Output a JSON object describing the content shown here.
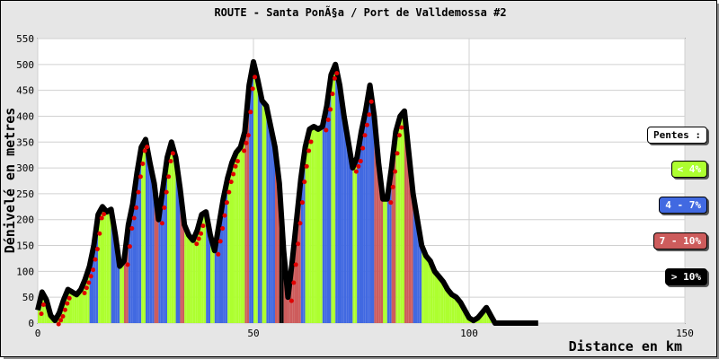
{
  "chart_data": {
    "type": "area",
    "title": "ROUTE - Santa PonÃ§a / Port de Valldemossa #2",
    "xlabel": "Distance en km",
    "ylabel": "Dénivelé en metres",
    "xlim": [
      0,
      150
    ],
    "ylim": [
      0,
      550
    ],
    "x_ticks": [
      "0",
      "50",
      "100",
      "150"
    ],
    "y_ticks": [
      "0",
      "50",
      "100",
      "150",
      "200",
      "250",
      "300",
      "350",
      "400",
      "450",
      "500",
      "550"
    ],
    "grid": true,
    "legend_position": "right",
    "legend_title": "Pentes :",
    "legend": [
      {
        "label": "< 4%",
        "color": "#adff2f",
        "text_color": "#ffffff"
      },
      {
        "label": "4 - 7%",
        "color": "#4169e1",
        "text_color": "#ffffff"
      },
      {
        "label": "7 - 10%",
        "color": "#cd5c5c",
        "text_color": "#ffffff"
      },
      {
        "label": "> 10%",
        "color": "#000000",
        "text_color": "#ffffff"
      }
    ],
    "profile": {
      "x": [
        0,
        1,
        2,
        3,
        4,
        5,
        6,
        7,
        8,
        9,
        10,
        11,
        12,
        13,
        14,
        15,
        16,
        17,
        18,
        19,
        20,
        21,
        22,
        23,
        24,
        25,
        26,
        27,
        28,
        29,
        30,
        31,
        32,
        33,
        34,
        35,
        36,
        37,
        38,
        39,
        40,
        41,
        42,
        43,
        44,
        45,
        46,
        47,
        48,
        49,
        50,
        51,
        52,
        53,
        54,
        55,
        56,
        57,
        58,
        59,
        60,
        61,
        62,
        63,
        64,
        65,
        66,
        67,
        68,
        69,
        70,
        71,
        72,
        73,
        74,
        75,
        76,
        77,
        78,
        79,
        80,
        81,
        82,
        83,
        84,
        85,
        86,
        87,
        88,
        89,
        90,
        91,
        92,
        93,
        94,
        95,
        96,
        97,
        98,
        99,
        100,
        101,
        102,
        103,
        104,
        105,
        106,
        107,
        108,
        109,
        110,
        111,
        112,
        113,
        114,
        115,
        116
      ],
      "y": [
        25,
        60,
        45,
        15,
        5,
        20,
        45,
        65,
        60,
        55,
        65,
        85,
        110,
        150,
        210,
        225,
        215,
        220,
        170,
        110,
        120,
        190,
        230,
        290,
        340,
        355,
        310,
        270,
        200,
        260,
        320,
        350,
        320,
        260,
        190,
        170,
        160,
        180,
        210,
        215,
        170,
        140,
        190,
        240,
        280,
        310,
        330,
        340,
        370,
        460,
        505,
        470,
        430,
        420,
        380,
        340,
        270,
        140,
        50,
        120,
        200,
        280,
        340,
        375,
        380,
        375,
        380,
        420,
        480,
        500,
        460,
        400,
        350,
        300,
        320,
        370,
        410,
        460,
        400,
        310,
        240,
        240,
        300,
        370,
        400,
        410,
        330,
        250,
        200,
        150,
        130,
        120,
        100,
        90,
        80,
        65,
        55,
        50,
        40,
        25,
        10,
        5,
        10,
        20,
        30,
        15,
        0,
        0,
        0,
        0,
        0,
        0,
        0,
        0,
        0,
        0,
        0
      ],
      "end_x": 116
    }
  }
}
